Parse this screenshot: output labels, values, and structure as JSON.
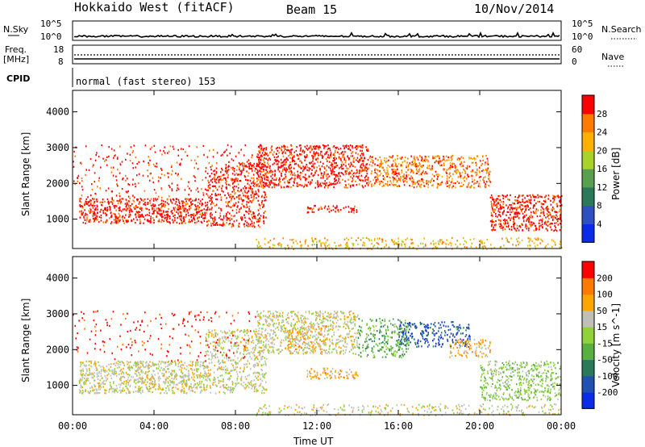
{
  "header": {
    "title": "Hokkaido West (fitACF)",
    "beam": "Beam 15",
    "date": "10/Nov/2014"
  },
  "sky_panel": {
    "left_label": "N.Sky",
    "right_label": "N.Search",
    "ticks": [
      "10^5",
      "10^0"
    ]
  },
  "freq_panel": {
    "left_label_line1": "Freq.",
    "left_label_line2": "[MHz]",
    "left_ticks": [
      "18",
      "8"
    ],
    "right_label": "Nave",
    "right_ticks": [
      "60",
      "0"
    ]
  },
  "cpid_panel": {
    "label": "CPID",
    "mode_text": "normal (fast stereo) 153"
  },
  "chart_data": [
    {
      "type": "heatmap",
      "name": "power",
      "ylabel": "Slant Range [km]",
      "xlabel": "",
      "x_ticks": [
        "00:00",
        "04:00",
        "08:00",
        "12:00",
        "16:00",
        "20:00",
        "00:00"
      ],
      "xlim_hours": [
        0,
        24
      ],
      "ylim": [
        180,
        4600
      ],
      "y_ticks": [
        1000,
        2000,
        3000,
        4000
      ],
      "colorbar": {
        "label": "Power [dB]",
        "tick_labels": [
          "4",
          "8",
          "12",
          "16",
          "20",
          "24",
          "28"
        ],
        "colors": [
          "#0a2ce8",
          "#3050c0",
          "#2a7a5a",
          "#58a050",
          "#a8d22a",
          "#ffb000",
          "#ff7a00",
          "#ff0000"
        ]
      },
      "regions": [
        {
          "t0": 0.3,
          "t1": 6.5,
          "r0": 900,
          "r1": 1600,
          "level": 7,
          "density": 0.8
        },
        {
          "t0": 6.5,
          "t1": 9.5,
          "r0": 800,
          "r1": 2600,
          "level": 7,
          "density": 0.5
        },
        {
          "t0": 9.0,
          "t1": 14.5,
          "r0": 1900,
          "r1": 3100,
          "level": 7,
          "density": 0.7
        },
        {
          "t0": 14.5,
          "t1": 20.5,
          "r0": 1900,
          "r1": 2800,
          "level": 6,
          "density": 0.6
        },
        {
          "t0": 20.5,
          "t1": 24.0,
          "r0": 700,
          "r1": 1700,
          "level": 7,
          "density": 0.75
        },
        {
          "t0": 11.5,
          "t1": 14.0,
          "r0": 1200,
          "r1": 1400,
          "level": 7,
          "density": 0.6
        },
        {
          "t0": 9.0,
          "t1": 24.0,
          "r0": 180,
          "r1": 500,
          "level": 5,
          "density": 0.35
        },
        {
          "t0": 0.0,
          "t1": 9.0,
          "r0": 1600,
          "r1": 3100,
          "level": 7,
          "density": 0.12
        }
      ]
    },
    {
      "type": "heatmap",
      "name": "velocity",
      "ylabel": "Slant Range [km]",
      "xlabel": "Time UT",
      "x_ticks": [
        "00:00",
        "04:00",
        "08:00",
        "12:00",
        "16:00",
        "20:00",
        "00:00"
      ],
      "xlim_hours": [
        0,
        24
      ],
      "ylim": [
        180,
        4600
      ],
      "y_ticks": [
        1000,
        2000,
        3000,
        4000
      ],
      "colorbar": {
        "label": "Velocity [m s^-1]",
        "tick_labels": [
          "200",
          "100",
          "50",
          "15",
          "-15",
          "-50",
          "-100",
          "-200"
        ],
        "colors": [
          "#0a2ce8",
          "#2050b0",
          "#2a7a5a",
          "#58b040",
          "#90d23a",
          "#c0c0b8",
          "#ffa500",
          "#ff7a00",
          "#ff0000"
        ]
      },
      "regions": [
        {
          "t0": 0.3,
          "t1": 6.5,
          "r0": 800,
          "r1": 1700,
          "level": 5,
          "density": 0.75
        },
        {
          "t0": 6.5,
          "t1": 9.5,
          "r0": 800,
          "r1": 2600,
          "level": 5,
          "density": 0.5
        },
        {
          "t0": 9.0,
          "t1": 14.0,
          "r0": 1900,
          "r1": 3100,
          "level": 5,
          "density": 0.6
        },
        {
          "t0": 10.5,
          "t1": 12.5,
          "r0": 2000,
          "r1": 2700,
          "level": 6,
          "density": 0.4
        },
        {
          "t0": 14.0,
          "t1": 16.5,
          "r0": 1800,
          "r1": 2900,
          "level": 3,
          "density": 0.45
        },
        {
          "t0": 16.0,
          "t1": 19.5,
          "r0": 2100,
          "r1": 2800,
          "level": 1,
          "density": 0.5
        },
        {
          "t0": 18.5,
          "t1": 20.5,
          "r0": 1800,
          "r1": 2300,
          "level": 6,
          "density": 0.5
        },
        {
          "t0": 20.0,
          "t1": 24.0,
          "r0": 600,
          "r1": 1700,
          "level": 4,
          "density": 0.55
        },
        {
          "t0": 11.5,
          "t1": 14.0,
          "r0": 1200,
          "r1": 1500,
          "level": 6,
          "density": 0.6
        },
        {
          "t0": 9.0,
          "t1": 24.0,
          "r0": 180,
          "r1": 500,
          "level": 5,
          "density": 0.3
        },
        {
          "t0": 0.0,
          "t1": 9.0,
          "r0": 1700,
          "r1": 3100,
          "level": 8,
          "density": 0.08
        }
      ]
    }
  ]
}
